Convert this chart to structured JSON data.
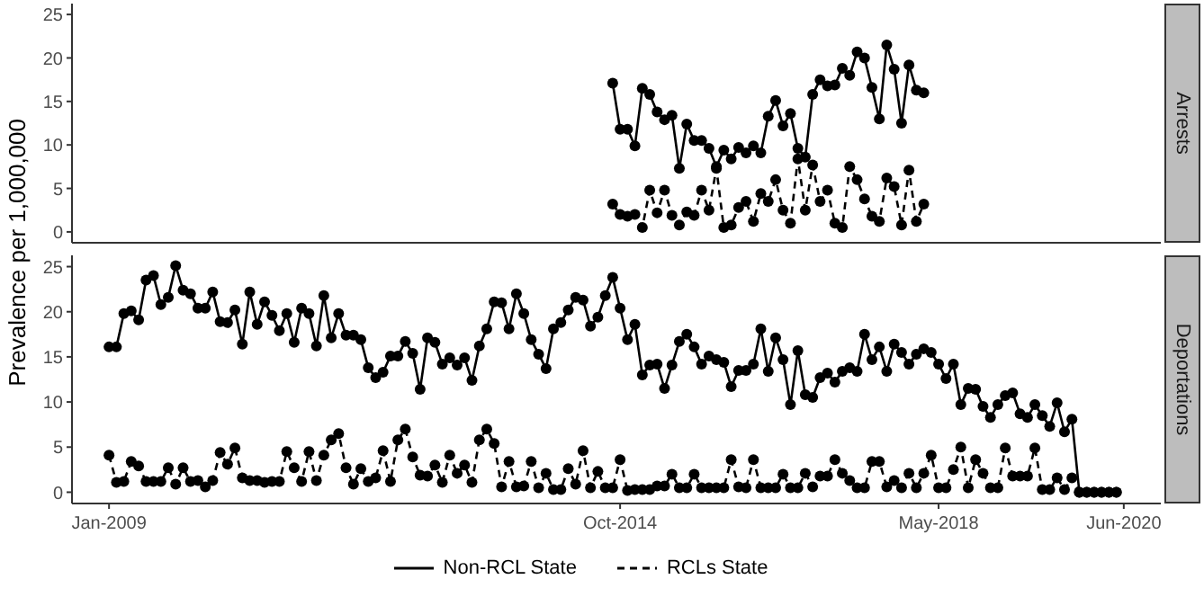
{
  "chart_data": [
    {
      "type": "line",
      "y2label": "Arrests",
      "ylabel": "Prevalence per 1,000,000",
      "tick_labels": "y",
      "marker": "circle",
      "xlim": [
        "2008-08",
        "2020-11"
      ],
      "ylim": [
        -1.25,
        26.25
      ],
      "yticks": [
        0,
        5,
        10,
        15,
        20,
        25
      ],
      "xticks": [
        {
          "value": "2009-01",
          "label": null
        },
        {
          "value": "2014-10",
          "label": null
        },
        {
          "value": "2018-05",
          "label": null
        },
        {
          "value": "2020-06",
          "label": null
        }
      ],
      "x": [
        "2014-09",
        "2014-10",
        "2014-11",
        "2014-12",
        "2015-01",
        "2015-02",
        "2015-03",
        "2015-04",
        "2015-05",
        "2015-06",
        "2015-07",
        "2015-08",
        "2015-09",
        "2015-10",
        "2015-11",
        "2015-12",
        "2016-01",
        "2016-02",
        "2016-03",
        "2016-04",
        "2016-05",
        "2016-06",
        "2016-07",
        "2016-08",
        "2016-09",
        "2016-10",
        "2016-11",
        "2016-12",
        "2017-01",
        "2017-02",
        "2017-03",
        "2017-04",
        "2017-05",
        "2017-06",
        "2017-07",
        "2017-08",
        "2017-09",
        "2017-10",
        "2017-11",
        "2017-12",
        "2018-01",
        "2018-02",
        "2018-03"
      ],
      "series": [
        {
          "color": "#000000",
          "line_style": "solid",
          "values": [
            17.1,
            11.8,
            11.8,
            9.9,
            16.5,
            15.8,
            13.8,
            12.9,
            13.4,
            7.3,
            12.4,
            10.5,
            10.5,
            9.6,
            7.5,
            9.4,
            8.4,
            9.7,
            9.1,
            9.9,
            9.1,
            13.3,
            15.1,
            12.2,
            13.6,
            9.6,
            8.6,
            15.8,
            17.5,
            16.8,
            16.9,
            18.8,
            18,
            20.7,
            20,
            16.6,
            13,
            21.5,
            18.7,
            12.5,
            19.2,
            16.3,
            16
          ]
        },
        {
          "color": "#000000",
          "line_style": "dashed",
          "values": [
            3.2,
            2.0,
            1.8,
            2.0,
            0.5,
            4.8,
            2.2,
            4.8,
            1.9,
            0.8,
            2.3,
            1.9,
            4.8,
            2.5,
            7.3,
            0.5,
            0.8,
            2.8,
            3.5,
            1.2,
            4.4,
            3.5,
            6.0,
            2.5,
            1.0,
            8.4,
            2.5,
            7.7,
            3.5,
            4.8,
            1.0,
            0.5,
            7.5,
            6.0,
            3.8,
            1.8,
            1.2,
            6.2,
            5.2,
            0.8,
            7.1,
            1.2,
            3.2
          ]
        }
      ]
    },
    {
      "type": "line",
      "y2label": "Deportations",
      "legend": "bottom",
      "marker": "circle",
      "xlim": [
        "2008-08",
        "2020-11"
      ],
      "ylim": [
        -1.25,
        26.25
      ],
      "yticks": [
        0,
        5,
        10,
        15,
        20,
        25
      ],
      "xticks": [
        {
          "value": "2009-01",
          "label": "Jan-2009"
        },
        {
          "value": "2014-10",
          "label": "Oct-2014"
        },
        {
          "value": "2018-05",
          "label": "May-2018"
        },
        {
          "value": "2020-06",
          "label": "Jun-2020"
        }
      ],
      "x": [
        "2009-01",
        "2009-02",
        "2009-03",
        "2009-04",
        "2009-05",
        "2009-06",
        "2009-07",
        "2009-08",
        "2009-09",
        "2009-10",
        "2009-11",
        "2009-12",
        "2010-01",
        "2010-02",
        "2010-03",
        "2010-04",
        "2010-05",
        "2010-06",
        "2010-07",
        "2010-08",
        "2010-09",
        "2010-10",
        "2010-11",
        "2010-12",
        "2011-01",
        "2011-02",
        "2011-03",
        "2011-04",
        "2011-05",
        "2011-06",
        "2011-07",
        "2011-08",
        "2011-09",
        "2011-10",
        "2011-11",
        "2011-12",
        "2012-01",
        "2012-02",
        "2012-03",
        "2012-04",
        "2012-05",
        "2012-06",
        "2012-07",
        "2012-08",
        "2012-09",
        "2012-10",
        "2012-11",
        "2012-12",
        "2013-01",
        "2013-02",
        "2013-03",
        "2013-04",
        "2013-05",
        "2013-06",
        "2013-07",
        "2013-08",
        "2013-09",
        "2013-10",
        "2013-11",
        "2013-12",
        "2014-01",
        "2014-02",
        "2014-03",
        "2014-04",
        "2014-05",
        "2014-06",
        "2014-07",
        "2014-08",
        "2014-09",
        "2014-10",
        "2014-11",
        "2014-12",
        "2015-01",
        "2015-02",
        "2015-03",
        "2015-04",
        "2015-05",
        "2015-06",
        "2015-07",
        "2015-08",
        "2015-09",
        "2015-10",
        "2015-11",
        "2015-12",
        "2016-01",
        "2016-02",
        "2016-03",
        "2016-04",
        "2016-05",
        "2016-06",
        "2016-07",
        "2016-08",
        "2016-09",
        "2016-10",
        "2016-11",
        "2016-12",
        "2017-01",
        "2017-02",
        "2017-03",
        "2017-04",
        "2017-05",
        "2017-06",
        "2017-07",
        "2017-08",
        "2017-09",
        "2017-10",
        "2017-11",
        "2017-12",
        "2018-01",
        "2018-02",
        "2018-03",
        "2018-04",
        "2018-05",
        "2018-06",
        "2018-07",
        "2018-08",
        "2018-09",
        "2018-10",
        "2018-11",
        "2018-12",
        "2019-01",
        "2019-02",
        "2019-03",
        "2019-04",
        "2019-05",
        "2019-06",
        "2019-07",
        "2019-08",
        "2019-09",
        "2019-10",
        "2019-11",
        "2019-12",
        "2020-01",
        "2020-02",
        "2020-03",
        "2020-04",
        "2020-05"
      ],
      "series": [
        {
          "name": "Non-RCL State",
          "color": "#000000",
          "line_style": "solid",
          "values": [
            16.1,
            16.1,
            19.8,
            20.1,
            19.1,
            23.5,
            24,
            20.8,
            21.6,
            25.1,
            22.4,
            22,
            20.4,
            20.4,
            22.2,
            18.9,
            18.8,
            20.2,
            16.4,
            22.2,
            18.6,
            21.1,
            19.6,
            17.9,
            19.8,
            16.6,
            20.4,
            19.8,
            16.2,
            21.8,
            17.1,
            19.8,
            17.4,
            17.4,
            16.9,
            13.8,
            12.7,
            13.3,
            15.1,
            15.1,
            16.7,
            15.4,
            11.4,
            17.1,
            16.6,
            14.2,
            14.9,
            14.1,
            14.9,
            12.4,
            16.2,
            18.1,
            21.1,
            21,
            18.1,
            22,
            19.8,
            16.9,
            15.3,
            13.7,
            18.1,
            18.8,
            20.2,
            21.6,
            21.3,
            18.4,
            19.4,
            21.8,
            23.8,
            20.4,
            16.9,
            18.6,
            13,
            14.1,
            14.2,
            11.5,
            14.1,
            16.7,
            17.5,
            16.1,
            14.2,
            15.1,
            14.7,
            14.4,
            11.7,
            13.5,
            13.5,
            14.2,
            18.1,
            13.4,
            17.1,
            14.7,
            9.7,
            15.7,
            10.8,
            10.5,
            12.7,
            13.2,
            12.2,
            13.4,
            13.8,
            13.4,
            17.5,
            14.7,
            16.1,
            13.4,
            16.4,
            15.5,
            14.2,
            15.3,
            15.9,
            15.5,
            14.2,
            12.6,
            14.2,
            9.7,
            11.5,
            11.4,
            9.5,
            8.3,
            9.7,
            10.7,
            11,
            8.7,
            8.3,
            9.7,
            8.5,
            7.3,
            9.9,
            6.7,
            8.1,
            0,
            0,
            0,
            0,
            0,
            0
          ]
        },
        {
          "name": "RCLs State",
          "color": "#000000",
          "line_style": "dashed",
          "values": [
            4.1,
            1.1,
            1.2,
            3.4,
            2.9,
            1.2,
            1.2,
            1.2,
            2.7,
            0.9,
            2.7,
            1.2,
            1.3,
            0.6,
            1.3,
            4.4,
            3.1,
            4.9,
            1.6,
            1.3,
            1.3,
            1.1,
            1.2,
            1.2,
            4.5,
            2.7,
            1.2,
            4.5,
            1.3,
            4.1,
            5.8,
            6.5,
            2.7,
            0.9,
            2.6,
            1.2,
            1.6,
            4.6,
            1.2,
            5.8,
            7.0,
            3.9,
            1.9,
            1.8,
            3.0,
            1.1,
            4.1,
            2.1,
            3.0,
            1.1,
            5.8,
            7.0,
            5.4,
            0.6,
            3.4,
            0.6,
            0.7,
            3.4,
            0.5,
            2.1,
            0.3,
            0.3,
            2.6,
            0.9,
            4.6,
            0.5,
            2.3,
            0.5,
            0.5,
            3.6,
            0.2,
            0.3,
            0.3,
            0.3,
            0.7,
            0.7,
            2.0,
            0.5,
            0.5,
            2.0,
            0.5,
            0.5,
            0.5,
            0.5,
            3.6,
            0.6,
            0.5,
            3.6,
            0.5,
            0.5,
            0.5,
            2.0,
            0.5,
            0.5,
            2.1,
            0.6,
            1.8,
            1.8,
            3.6,
            2.1,
            1.3,
            0.5,
            0.5,
            3.4,
            3.4,
            0.6,
            1.3,
            0.5,
            2.1,
            0.5,
            2.1,
            4.1,
            0.5,
            0.5,
            2.5,
            5.0,
            0.5,
            3.6,
            2.1,
            0.5,
            0.5,
            4.9,
            1.8,
            1.8,
            1.8,
            4.9,
            0.3,
            0.3,
            1.6,
            0.3,
            1.6,
            0,
            0,
            0,
            0,
            0,
            0
          ]
        }
      ]
    }
  ]
}
